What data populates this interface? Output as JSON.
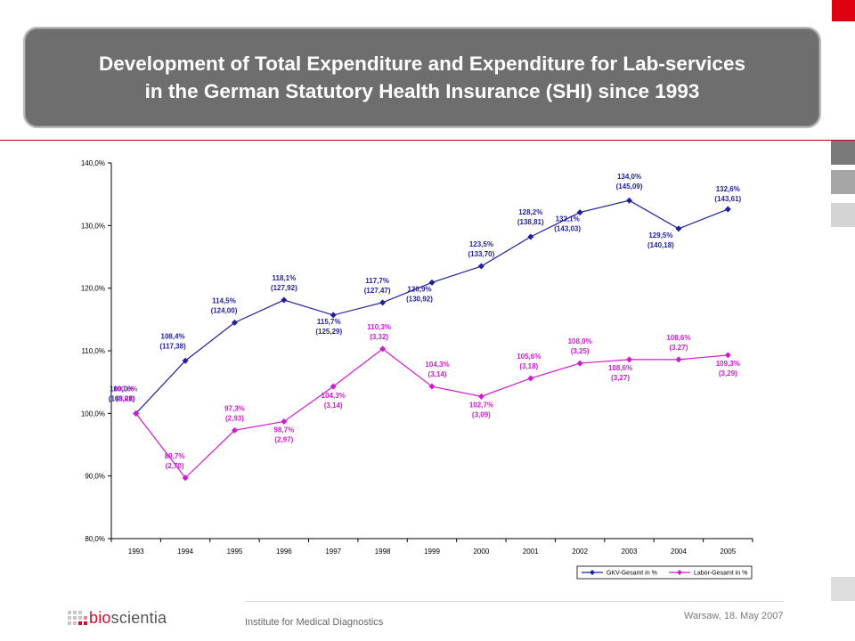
{
  "title": {
    "line1": "Development of Total Expenditure and Expenditure for Lab-services",
    "line2": "in the German Statutory Health Insurance (SHI) since 1993"
  },
  "footer": {
    "institute": "Institute for Medical Diagnostics",
    "date": "Warsaw, 18. May 2007",
    "logo_prefix": "bio",
    "logo_suffix": "scientia"
  },
  "colors": {
    "accent_red": "#e0000f",
    "title_bg": "#6e6e6e",
    "series_blue": "#1f1fa0",
    "series_magenta": "#d01ad0"
  },
  "chart_data": {
    "type": "line",
    "title": "",
    "xlabel": "",
    "ylabel": "",
    "categories": [
      "1993",
      "1994",
      "1995",
      "1996",
      "1997",
      "1998",
      "1999",
      "2000",
      "2001",
      "2002",
      "2003",
      "2004",
      "2005"
    ],
    "ylim": [
      80,
      140
    ],
    "yticks": [
      "80,0%",
      "90,0%",
      "100,0%",
      "110,0%",
      "120,0%",
      "130,0%",
      "140,0%"
    ],
    "grid": false,
    "legend_position": "bottom-right",
    "series": [
      {
        "name": "GKV-Gesamt in %",
        "color": "#1f1fa0",
        "values": [
          100.0,
          108.4,
          114.5,
          118.1,
          115.7,
          117.7,
          120.9,
          123.5,
          128.2,
          132.1,
          134.0,
          129.5,
          132.6
        ],
        "labels": [
          {
            "i": 0,
            "pct": "100,0%",
            "abs": "(108,28)"
          },
          {
            "i": 1,
            "pct": "108,4%",
            "abs": "(117,38)"
          },
          {
            "i": 2,
            "pct": "114,5%",
            "abs": "(124,00)"
          },
          {
            "i": 3,
            "pct": "118,1%",
            "abs": "(127,92)"
          },
          {
            "i": 4,
            "pct": "115,7%",
            "abs": "(125,29)"
          },
          {
            "i": 5,
            "pct": "117,7%",
            "abs": "(127,47)"
          },
          {
            "i": 6,
            "pct": "120,9%",
            "abs": "(130,92)"
          },
          {
            "i": 7,
            "pct": "123,5%",
            "abs": "(133,70)"
          },
          {
            "i": 8,
            "pct": "128,2%",
            "abs": "(138,81)"
          },
          {
            "i": 9,
            "pct": "132,1%",
            "abs": "(143,03)"
          },
          {
            "i": 10,
            "pct": "134,0%",
            "abs": "(145,09)"
          },
          {
            "i": 11,
            "pct": "129,5%",
            "abs": "(140,18)"
          },
          {
            "i": 12,
            "pct": "132,6%",
            "abs": "(143,61)"
          }
        ]
      },
      {
        "name": "Labor-Gesamt in %",
        "color": "#d01ad0",
        "values": [
          100.0,
          89.7,
          97.3,
          98.7,
          104.3,
          110.3,
          104.3,
          102.7,
          105.6,
          108.0,
          108.6,
          108.6,
          109.3
        ],
        "labels": [
          {
            "i": 0,
            "pct": "100,0%",
            "abs": "(3,01)"
          },
          {
            "i": 1,
            "pct": "89,7%",
            "abs": "(2,70)"
          },
          {
            "i": 2,
            "pct": "97,3%",
            "abs": "(2,93)"
          },
          {
            "i": 3,
            "pct": "98,7%",
            "abs": "(2,97)"
          },
          {
            "i": 4,
            "pct": "104,3%",
            "abs": "(3,14)"
          },
          {
            "i": 5,
            "pct": "110,3%",
            "abs": "(3,32)"
          },
          {
            "i": 6,
            "pct": "104,3%",
            "abs": "(3,14)"
          },
          {
            "i": 7,
            "pct": "102,7%",
            "abs": "(3,09)"
          },
          {
            "i": 8,
            "pct": "105,6%",
            "abs": "(3,18)"
          },
          {
            "i": 9,
            "pct": "108,0%",
            "abs": "(3,25)"
          },
          {
            "i": 10,
            "pct": "108,6%",
            "abs": "(3,27)"
          },
          {
            "i": 11,
            "pct": "108,6%",
            "abs": "(3.27)"
          },
          {
            "i": 12,
            "pct": "109,3%",
            "abs": "(3,29)"
          }
        ]
      }
    ]
  }
}
